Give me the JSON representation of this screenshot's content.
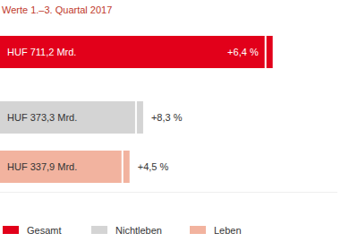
{
  "chart_data": {
    "type": "bar",
    "orientation": "horizontal",
    "title": "Werte 1.–3. Quartal 2017",
    "categories": [
      "Gesamt",
      "Nichtleben",
      "Leben"
    ],
    "values": [
      711.2,
      373.3,
      337.9
    ],
    "value_labels": [
      "HUF 711,2 Mrd.",
      "HUF 373,3 Mrd.",
      "HUF 337,9 Mrd."
    ],
    "data_labels": true,
    "growth": [
      6.4,
      8.3,
      4.5
    ],
    "growth_labels": [
      "+6,4 %",
      "+8,3 %",
      "+4,5 %"
    ],
    "colors": [
      "#e2001a",
      "#d4d4d4",
      "#f2b39f"
    ],
    "xlim": [
      0,
      880
    ],
    "tick_labels": false,
    "grid": false,
    "legend": "bottom"
  }
}
